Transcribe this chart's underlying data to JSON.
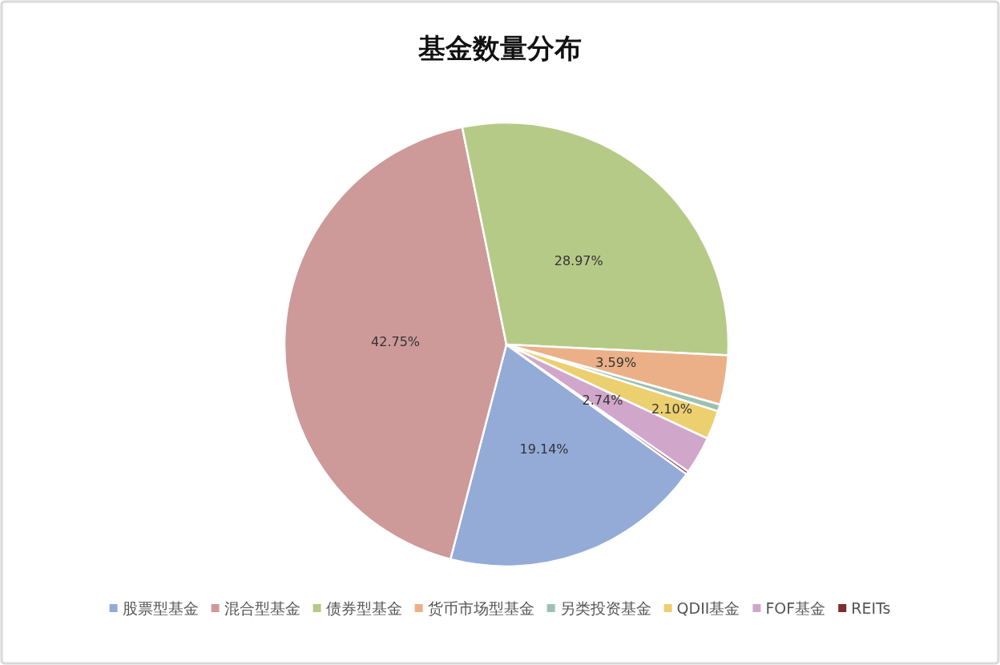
{
  "chart_data": {
    "type": "pie",
    "title": "基金数量分布",
    "categories": [
      "股票型基金",
      "混合型基金",
      "债券型基金",
      "货币市场型基金",
      "另类投资基金",
      "QDII基金",
      "FOF基金",
      "REITs"
    ],
    "values": [
      19.14,
      42.75,
      28.97,
      3.59,
      0.5,
      2.1,
      2.74,
      0.21
    ],
    "value_labels": [
      "19.14%",
      "42.75%",
      "28.97%",
      "3.59%",
      null,
      "2.10%",
      "2.74%",
      null
    ],
    "colors": [
      "#94abd8",
      "#cd9999",
      "#b6ca88",
      "#ebb088",
      "#9bc1b3",
      "#eccf6f",
      "#d1a6cb",
      "#7b2e2a"
    ],
    "legend": "bottom"
  }
}
